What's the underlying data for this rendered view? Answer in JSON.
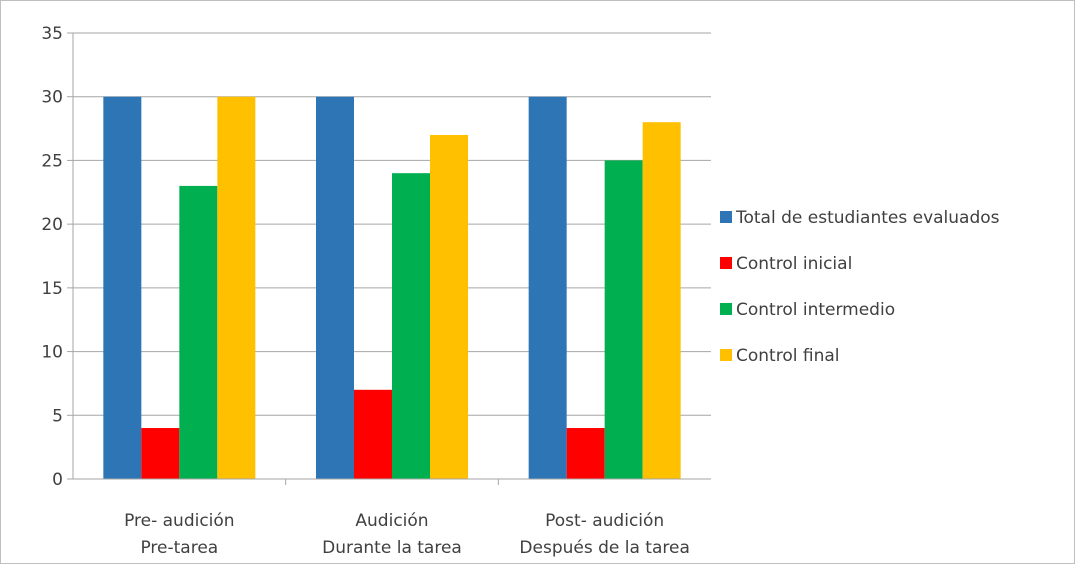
{
  "chart_data": {
    "type": "bar",
    "title": "",
    "xlabel": "",
    "ylabel": "",
    "ylim": [
      0,
      35
    ],
    "yticks": [
      0,
      5,
      10,
      15,
      20,
      25,
      30,
      35
    ],
    "grid": true,
    "legend_position": "right",
    "categories": [
      [
        "Pre- audición",
        "Pre-tarea"
      ],
      [
        "Audición",
        "Durante la tarea"
      ],
      [
        "Post- audición",
        "Después de la tarea"
      ]
    ],
    "series": [
      {
        "name": "Total de estudiantes evaluados",
        "color": "#2e75b6",
        "values": [
          30,
          30,
          30
        ]
      },
      {
        "name": "Control inicial",
        "color": "#ff0000",
        "values": [
          4,
          7,
          4
        ]
      },
      {
        "name": "Control intermedio",
        "color": "#00b050",
        "values": [
          23,
          24,
          25
        ]
      },
      {
        "name": "Control final",
        "color": "#ffc000",
        "values": [
          30,
          27,
          28
        ]
      }
    ]
  }
}
